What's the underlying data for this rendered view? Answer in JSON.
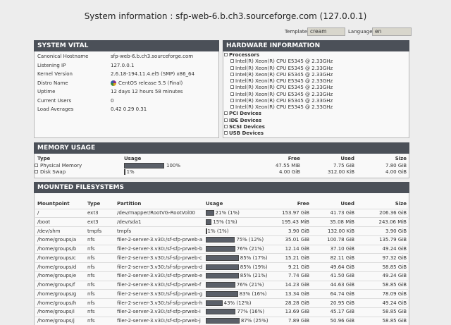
{
  "header": {
    "title": "System information : sfp-web-6.b.ch3.sourceforge.com (127.0.0.1)",
    "template_label": "Template",
    "template": "cream",
    "language_label": "Language",
    "language": "en"
  },
  "system_vital": {
    "title": "SYSTEM VITAL",
    "rows": [
      [
        "Canonical Hostname",
        "sfp-web-6.b.ch3.sourceforge.com"
      ],
      [
        "Listening IP",
        "127.0.0.1"
      ],
      [
        "Kernel Version",
        "2.6.18-194.11.4.el5 (SMP) x86_64"
      ],
      [
        "Distro Name",
        "CentOS release 5.5 (Final)"
      ],
      [
        "Uptime",
        "12 days 12 hours 58 minutes"
      ],
      [
        "Current Users",
        "0"
      ],
      [
        "Load Averages",
        "0.42 0.29 0.31"
      ]
    ]
  },
  "hardware": {
    "title": "HARDWARE INFORMATION",
    "processors": {
      "label": "Processors",
      "items": [
        "Intel(R) Xeon(R) CPU E5345 @ 2.33GHz",
        "Intel(R) Xeon(R) CPU E5345 @ 2.33GHz",
        "Intel(R) Xeon(R) CPU E5345 @ 2.33GHz",
        "Intel(R) Xeon(R) CPU E5345 @ 2.33GHz",
        "Intel(R) Xeon(R) CPU E5345 @ 2.33GHz",
        "Intel(R) Xeon(R) CPU E5345 @ 2.33GHz",
        "Intel(R) Xeon(R) CPU E5345 @ 2.33GHz",
        "Intel(R) Xeon(R) CPU E5345 @ 2.33GHz"
      ]
    },
    "devices": [
      "PCI Devices",
      "IDE Devices",
      "SCSI Devices",
      "USB Devices"
    ]
  },
  "memory": {
    "title": "MEMORY USAGE",
    "columns": [
      "Type",
      "Usage",
      "Free",
      "Used",
      "Size"
    ],
    "rows": [
      {
        "type": "Physical Memory",
        "usage": {
          "value": 100,
          "label": "100%"
        },
        "free": "47.55 MiB",
        "used": "7.75 GiB",
        "size": "7.80 GiB"
      },
      {
        "type": "Disk Swap",
        "usage": {
          "value": 1,
          "label": "1%"
        },
        "free": "4.00 GiB",
        "used": "312.00 KiB",
        "size": "4.00 GiB"
      }
    ]
  },
  "filesystems": {
    "title": "MOUNTED FILESYSTEMS",
    "columns": [
      "Mountpoint",
      "Type",
      "Partition",
      "Usage",
      "Free",
      "Used",
      "Size"
    ],
    "rows": [
      {
        "mountpoint": "/",
        "type": "ext3",
        "partition": "/dev/mapper/RootVG-RootVol00",
        "usage": {
          "value": 21,
          "label": "21% (1%)"
        },
        "free": "153.97 GiB",
        "used": "41.73 GiB",
        "size": "206.36 GiB"
      },
      {
        "mountpoint": "/boot",
        "type": "ext3",
        "partition": "/dev/sda1",
        "usage": {
          "value": 15,
          "label": "15% (1%)"
        },
        "free": "195.43 MiB",
        "used": "35.08 MiB",
        "size": "243.06 MiB"
      },
      {
        "mountpoint": "/dev/shm",
        "type": "tmpfs",
        "partition": "tmpfs",
        "usage": {
          "value": 1,
          "label": "1% (1%)"
        },
        "free": "3.90 GiB",
        "used": "132.00 KiB",
        "size": "3.90 GiB"
      },
      {
        "mountpoint": "/home/groups/a",
        "type": "nfs",
        "partition": "filer-2-server-3.v30:/sf-sfp-prweb-a",
        "usage": {
          "value": 75,
          "label": "75% (12%)"
        },
        "free": "35.01 GiB",
        "used": "100.78 GiB",
        "size": "135.79 GiB"
      },
      {
        "mountpoint": "/home/groups/b",
        "type": "nfs",
        "partition": "filer-2-server-3.v30:/sf-sfp-prweb-b",
        "usage": {
          "value": 76,
          "label": "76% (21%)"
        },
        "free": "12.14 GiB",
        "used": "37.10 GiB",
        "size": "49.24 GiB"
      },
      {
        "mountpoint": "/home/groups/c",
        "type": "nfs",
        "partition": "filer-2-server-3.v30:/sf-sfp-prweb-c",
        "usage": {
          "value": 85,
          "label": "85% (17%)"
        },
        "free": "15.21 GiB",
        "used": "82.11 GiB",
        "size": "97.32 GiB"
      },
      {
        "mountpoint": "/home/groups/d",
        "type": "nfs",
        "partition": "filer-2-server-3.v30:/sf-sfp-prweb-d",
        "usage": {
          "value": 85,
          "label": "85% (19%)"
        },
        "free": "9.21 GiB",
        "used": "49.64 GiB",
        "size": "58.85 GiB"
      },
      {
        "mountpoint": "/home/groups/e",
        "type": "nfs",
        "partition": "filer-2-server-3.v30:/sf-sfp-prweb-e",
        "usage": {
          "value": 85,
          "label": "85% (21%)"
        },
        "free": "7.74 GiB",
        "used": "41.50 GiB",
        "size": "49.24 GiB"
      },
      {
        "mountpoint": "/home/groups/f",
        "type": "nfs",
        "partition": "filer-2-server-3.v30:/sf-sfp-prweb-f",
        "usage": {
          "value": 76,
          "label": "76% (21%)"
        },
        "free": "14.23 GiB",
        "used": "44.63 GiB",
        "size": "58.85 GiB"
      },
      {
        "mountpoint": "/home/groups/g",
        "type": "nfs",
        "partition": "filer-2-server-3.v30:/sf-sfp-prweb-g",
        "usage": {
          "value": 83,
          "label": "83% (16%)"
        },
        "free": "13.34 GiB",
        "used": "64.74 GiB",
        "size": "78.09 GiB"
      },
      {
        "mountpoint": "/home/groups/h",
        "type": "nfs",
        "partition": "filer-2-server-3.v30:/sf-sfp-prweb-h",
        "usage": {
          "value": 43,
          "label": "43% (12%)"
        },
        "free": "28.28 GiB",
        "used": "20.95 GiB",
        "size": "49.24 GiB"
      },
      {
        "mountpoint": "/home/groups/i",
        "type": "nfs",
        "partition": "filer-2-server-3.v30:/sf-sfp-prweb-i",
        "usage": {
          "value": 77,
          "label": "77% (16%)"
        },
        "free": "13.69 GiB",
        "used": "45.17 GiB",
        "size": "58.85 GiB"
      },
      {
        "mountpoint": "/home/groups/j",
        "type": "nfs",
        "partition": "filer-2-server-3.v30:/sf-sfp-prweb-j",
        "usage": {
          "value": 87,
          "label": "87% (25%)"
        },
        "free": "7.89 GiB",
        "used": "50.96 GiB",
        "size": "58.85 GiB"
      }
    ]
  }
}
